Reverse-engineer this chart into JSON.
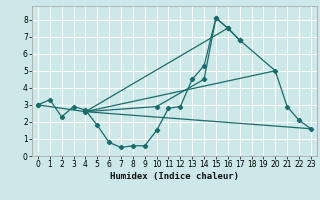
{
  "xlabel": "Humidex (Indice chaleur)",
  "bg_color": "#cce8e8",
  "grid_color": "#ffffff",
  "line_color": "#1a6b6b",
  "line1_x": [
    0,
    1,
    2,
    3,
    4,
    5,
    6,
    7,
    8,
    9,
    10,
    11,
    12,
    13,
    14,
    15,
    16,
    17
  ],
  "line1_y": [
    3.0,
    3.3,
    2.3,
    2.9,
    2.7,
    1.8,
    0.8,
    0.5,
    0.6,
    0.6,
    1.5,
    2.8,
    2.9,
    4.5,
    5.3,
    8.1,
    7.5,
    6.8
  ],
  "line2_x": [
    0,
    4,
    10,
    14,
    15,
    16,
    17,
    20,
    21,
    22,
    23
  ],
  "line2_y": [
    3.0,
    2.6,
    2.9,
    4.5,
    8.1,
    7.5,
    6.8,
    5.0,
    2.9,
    2.1,
    1.6
  ],
  "line3_x": [
    4,
    23
  ],
  "line3_y": [
    2.6,
    1.6
  ],
  "line4_x": [
    4,
    20
  ],
  "line4_y": [
    2.6,
    5.0
  ],
  "line5_x": [
    4,
    16
  ],
  "line5_y": [
    2.6,
    7.5
  ],
  "xlim": [
    -0.5,
    23.5
  ],
  "ylim": [
    0,
    8.8
  ],
  "xticks": [
    0,
    1,
    2,
    3,
    4,
    5,
    6,
    7,
    8,
    9,
    10,
    11,
    12,
    13,
    14,
    15,
    16,
    17,
    18,
    19,
    20,
    21,
    22,
    23
  ],
  "yticks": [
    0,
    1,
    2,
    3,
    4,
    5,
    6,
    7,
    8
  ],
  "xlabel_fontsize": 6.5,
  "tick_fontsize": 5.5
}
